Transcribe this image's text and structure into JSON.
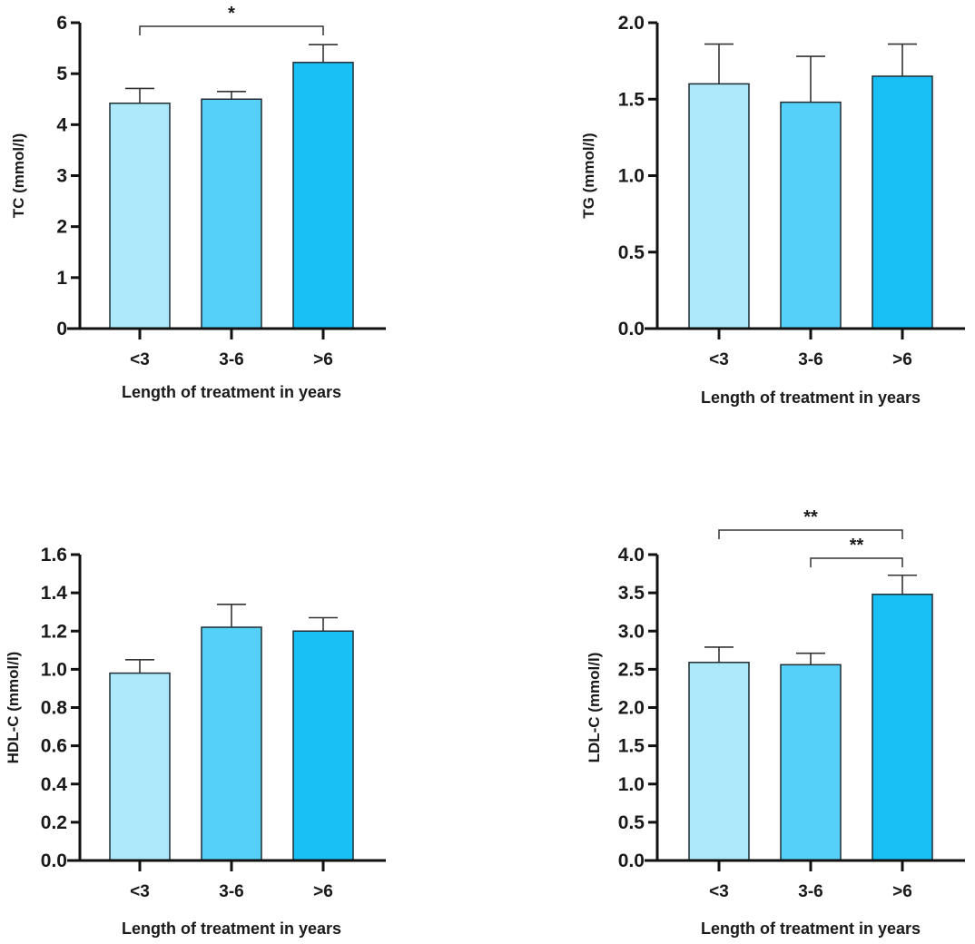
{
  "chart_data": [
    {
      "type": "bar",
      "panel": "top-left",
      "ylabel": "TC (mmol/l)",
      "xlabel": "Length of treatment in years",
      "categories": [
        "<3",
        "3-6",
        ">6"
      ],
      "values": [
        4.42,
        4.5,
        5.22
      ],
      "error_upper": [
        4.71,
        4.65,
        5.57
      ],
      "ylim": [
        0,
        6
      ],
      "yticks": [
        0,
        1,
        2,
        3,
        4,
        5,
        6
      ],
      "ytick_labels": [
        "0",
        "1",
        "2",
        "3",
        "4",
        "5",
        "6"
      ],
      "significance": [
        {
          "from": "<3",
          "to": ">6",
          "label": "*"
        }
      ]
    },
    {
      "type": "bar",
      "panel": "top-right",
      "ylabel": "TG (mmol/l)",
      "xlabel": "Length of treatment in years",
      "categories": [
        "<3",
        "3-6",
        ">6"
      ],
      "values": [
        1.6,
        1.48,
        1.65
      ],
      "error_upper": [
        1.86,
        1.78,
        1.86
      ],
      "ylim": [
        0,
        2.0
      ],
      "yticks": [
        0,
        0.5,
        1.0,
        1.5,
        2.0
      ],
      "ytick_labels": [
        "0.0",
        "0.5",
        "1.0",
        "1.5",
        "2.0"
      ],
      "significance": []
    },
    {
      "type": "bar",
      "panel": "bottom-left",
      "ylabel": "HDL-C  (mmol/l)",
      "xlabel": "Length of treatment in years",
      "categories": [
        "<3",
        "3-6",
        ">6"
      ],
      "values": [
        0.98,
        1.22,
        1.2
      ],
      "error_upper": [
        1.05,
        1.34,
        1.27
      ],
      "ylim": [
        0,
        1.6
      ],
      "yticks": [
        0,
        0.2,
        0.4,
        0.6,
        0.8,
        1.0,
        1.2,
        1.4,
        1.6
      ],
      "ytick_labels": [
        "0.0",
        "0.2",
        "0.4",
        "0.6",
        "0.8",
        "1.0",
        "1.2",
        "1.4",
        "1.6"
      ],
      "significance": []
    },
    {
      "type": "bar",
      "panel": "bottom-right",
      "ylabel": "LDL-C  (mmol/l)",
      "xlabel": "Length of treatment in years",
      "categories": [
        "<3",
        "3-6",
        ">6"
      ],
      "values": [
        2.59,
        2.56,
        3.48
      ],
      "error_upper": [
        2.79,
        2.71,
        3.73
      ],
      "ylim": [
        0,
        4.0
      ],
      "yticks": [
        0,
        0.5,
        1.0,
        1.5,
        2.0,
        2.5,
        3.0,
        3.5,
        4.0
      ],
      "ytick_labels": [
        "0.0",
        "0.5",
        "1.0",
        "1.5",
        "2.0",
        "2.5",
        "3.0",
        "3.5",
        "4.0"
      ],
      "significance": [
        {
          "from": "<3",
          "to": ">6",
          "label": "**"
        },
        {
          "from": "3-6",
          "to": ">6",
          "label": "**"
        }
      ]
    }
  ],
  "colors": {
    "bar_fills": [
      "#ADE8FB",
      "#55D0F8",
      "#18C0F6"
    ],
    "bar_stroke": "#1f2d33",
    "axis": "#111111"
  }
}
